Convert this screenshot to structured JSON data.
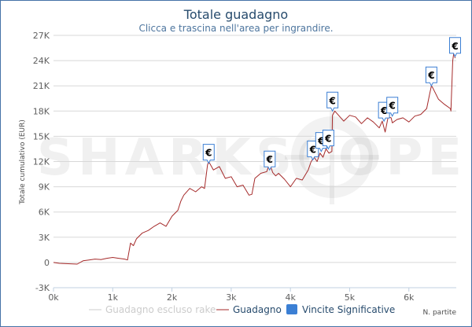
{
  "chart_data": {
    "type": "line",
    "title": "Totale guadagno",
    "subtitle": "Clicca e trascina nell'area per ingrandire.",
    "xlabel": "N. partite",
    "ylabel": "Totale cumulativo (EUR)",
    "xlim": [
      0,
      6800
    ],
    "ylim": [
      -3000,
      27000
    ],
    "x_ticks": [
      0,
      1000,
      2000,
      3000,
      4000,
      5000,
      6000
    ],
    "x_tick_labels": [
      "0k",
      "1k",
      "2k",
      "3k",
      "4k",
      "5k",
      "6k"
    ],
    "y_ticks": [
      -3000,
      0,
      3000,
      6000,
      9000,
      12000,
      15000,
      18000,
      21000,
      24000,
      27000
    ],
    "y_tick_labels": [
      "-3K",
      "0",
      "3K",
      "6K",
      "9K",
      "12K",
      "15K",
      "18K",
      "21K",
      "24K",
      "27K"
    ],
    "grid": true,
    "legend_position": "bottom",
    "watermark": "SHARKSCOPE",
    "series": [
      {
        "name": "Guadagno escluso rake",
        "color": "#cccccc",
        "visible": false,
        "x": [],
        "y": []
      },
      {
        "name": "Guadagno",
        "color": "#a52a2a",
        "visible": true,
        "x": [
          0,
          100,
          250,
          400,
          500,
          600,
          700,
          800,
          900,
          1000,
          1100,
          1200,
          1250,
          1300,
          1350,
          1400,
          1500,
          1600,
          1700,
          1800,
          1900,
          2000,
          2100,
          2150,
          2200,
          2300,
          2400,
          2500,
          2550,
          2600,
          2620,
          2700,
          2800,
          2900,
          3000,
          3100,
          3200,
          3300,
          3350,
          3400,
          3500,
          3600,
          3650,
          3700,
          3750,
          3800,
          3900,
          4000,
          4100,
          4200,
          4300,
          4350,
          4400,
          4450,
          4500,
          4550,
          4600,
          4650,
          4700,
          4710,
          4750,
          4800,
          4900,
          5000,
          5100,
          5200,
          5300,
          5400,
          5500,
          5550,
          5600,
          5650,
          5700,
          5720,
          5800,
          5900,
          6000,
          6100,
          6200,
          6300,
          6350,
          6380,
          6400,
          6500,
          6600,
          6700,
          6710,
          6740,
          6760,
          6780
        ],
        "y": [
          0,
          -100,
          -150,
          -200,
          200,
          300,
          400,
          350,
          500,
          600,
          500,
          400,
          300,
          2300,
          2000,
          2800,
          3500,
          3800,
          4300,
          4700,
          4300,
          5500,
          6200,
          7300,
          8000,
          8800,
          8400,
          9000,
          8800,
          11600,
          12000,
          11000,
          11400,
          10000,
          10200,
          9000,
          9200,
          8000,
          8100,
          10000,
          10600,
          10800,
          11800,
          10700,
          10300,
          10600,
          9900,
          9000,
          10000,
          9800,
          11000,
          12000,
          12500,
          12000,
          13000,
          12500,
          13500,
          13000,
          13200,
          17500,
          18000,
          17600,
          16800,
          17500,
          17300,
          16500,
          17200,
          16700,
          16000,
          16800,
          15500,
          17300,
          17200,
          16600,
          17000,
          17200,
          16700,
          17400,
          17600,
          18300,
          20000,
          21000,
          20800,
          19400,
          18800,
          18300,
          18000,
          24000,
          25000,
          24300
        ]
      }
    ],
    "significant_wins": {
      "name": "Vincite Significative",
      "color": "#3b7fd4",
      "symbol": "€",
      "x": [
        2620,
        3650,
        4380,
        4520,
        4640,
        4710,
        5580,
        5720,
        6380,
        6780
      ],
      "y": [
        11800,
        11000,
        12200,
        13200,
        13500,
        18000,
        16800,
        17400,
        21000,
        24500
      ]
    }
  }
}
